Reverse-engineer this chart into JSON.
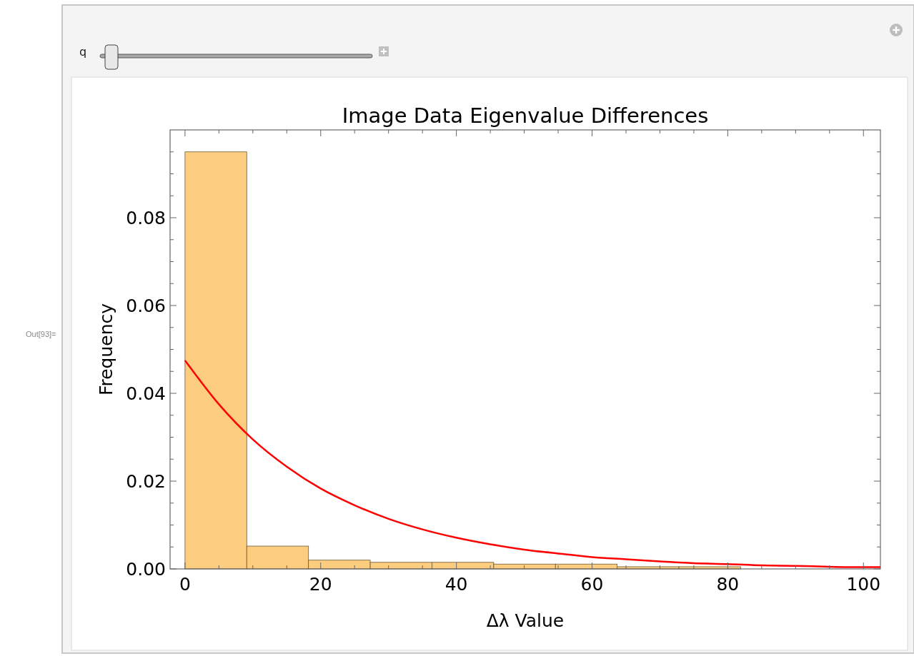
{
  "chart_data": {
    "type": "histogram",
    "title": "Image Data Eigenvalue Differences",
    "xlabel": "Δλ Value",
    "ylabel": "Frequency",
    "bins": [
      0,
      9.1,
      18.2,
      27.3,
      36.4,
      45.5,
      54.6,
      63.7,
      72.8,
      81.9
    ],
    "values": [
      0.095,
      0.0052,
      0.002,
      0.0015,
      0.0015,
      0.0011,
      0.0011,
      0.0005,
      0.0005
    ],
    "color": "#fccd7e",
    "series": [
      {
        "type": "line",
        "color": "#ff0000",
        "x": [
          0,
          5,
          10,
          15,
          20,
          25,
          30,
          35,
          40,
          45,
          50,
          55,
          60,
          65,
          70,
          75,
          80,
          85,
          90,
          95,
          100,
          102.5
        ],
        "values": [
          0.0475,
          0.0375,
          0.0295,
          0.0233,
          0.0183,
          0.0145,
          0.0114,
          0.009,
          0.0071,
          0.0056,
          0.0044,
          0.0035,
          0.0027,
          0.0022,
          0.0017,
          0.0013,
          0.0011,
          0.0008,
          0.0007,
          0.0005,
          0.0004,
          0.0004
        ]
      }
    ],
    "xlim": [
      -2.2,
      102.5
    ],
    "xticks": [
      0,
      {
        "value": 5,
        "label": null
      },
      {
        "value": 10,
        "label": null
      },
      {
        "value": 15,
        "label": null
      },
      20,
      {
        "value": 25,
        "label": null
      },
      {
        "value": 30,
        "label": null
      },
      {
        "value": 35,
        "label": null
      },
      40,
      {
        "value": 45,
        "label": null
      },
      {
        "value": 50,
        "label": null
      },
      {
        "value": 55,
        "label": null
      },
      60,
      {
        "value": 65,
        "label": null
      },
      {
        "value": 70,
        "label": null
      },
      {
        "value": 75,
        "label": null
      },
      80,
      {
        "value": 85,
        "label": null
      },
      {
        "value": 90,
        "label": null
      },
      {
        "value": 95,
        "label": null
      },
      100
    ],
    "ylim": [
      0,
      0.1
    ],
    "yticks": [
      {
        "value": 0,
        "label": "0.00"
      },
      {
        "value": 0.005,
        "label": null
      },
      {
        "value": 0.01,
        "label": null
      },
      {
        "value": 0.015,
        "label": null
      },
      {
        "value": 0.02,
        "label": "0.02"
      },
      {
        "value": 0.025,
        "label": null
      },
      {
        "value": 0.03,
        "label": null
      },
      {
        "value": 0.035,
        "label": null
      },
      {
        "value": 0.04,
        "label": "0.04"
      },
      {
        "value": 0.045,
        "label": null
      },
      {
        "value": 0.05,
        "label": null
      },
      {
        "value": 0.055,
        "label": null
      },
      {
        "value": 0.06,
        "label": "0.06"
      },
      {
        "value": 0.065,
        "label": null
      },
      {
        "value": 0.07,
        "label": null
      },
      {
        "value": 0.075,
        "label": null
      },
      {
        "value": 0.08,
        "label": "0.08"
      },
      {
        "value": 0.085,
        "label": null
      },
      {
        "value": 0.09,
        "label": null
      },
      {
        "value": 0.095,
        "label": null
      }
    ],
    "annotations": [
      "q",
      "Out[93]="
    ]
  }
}
